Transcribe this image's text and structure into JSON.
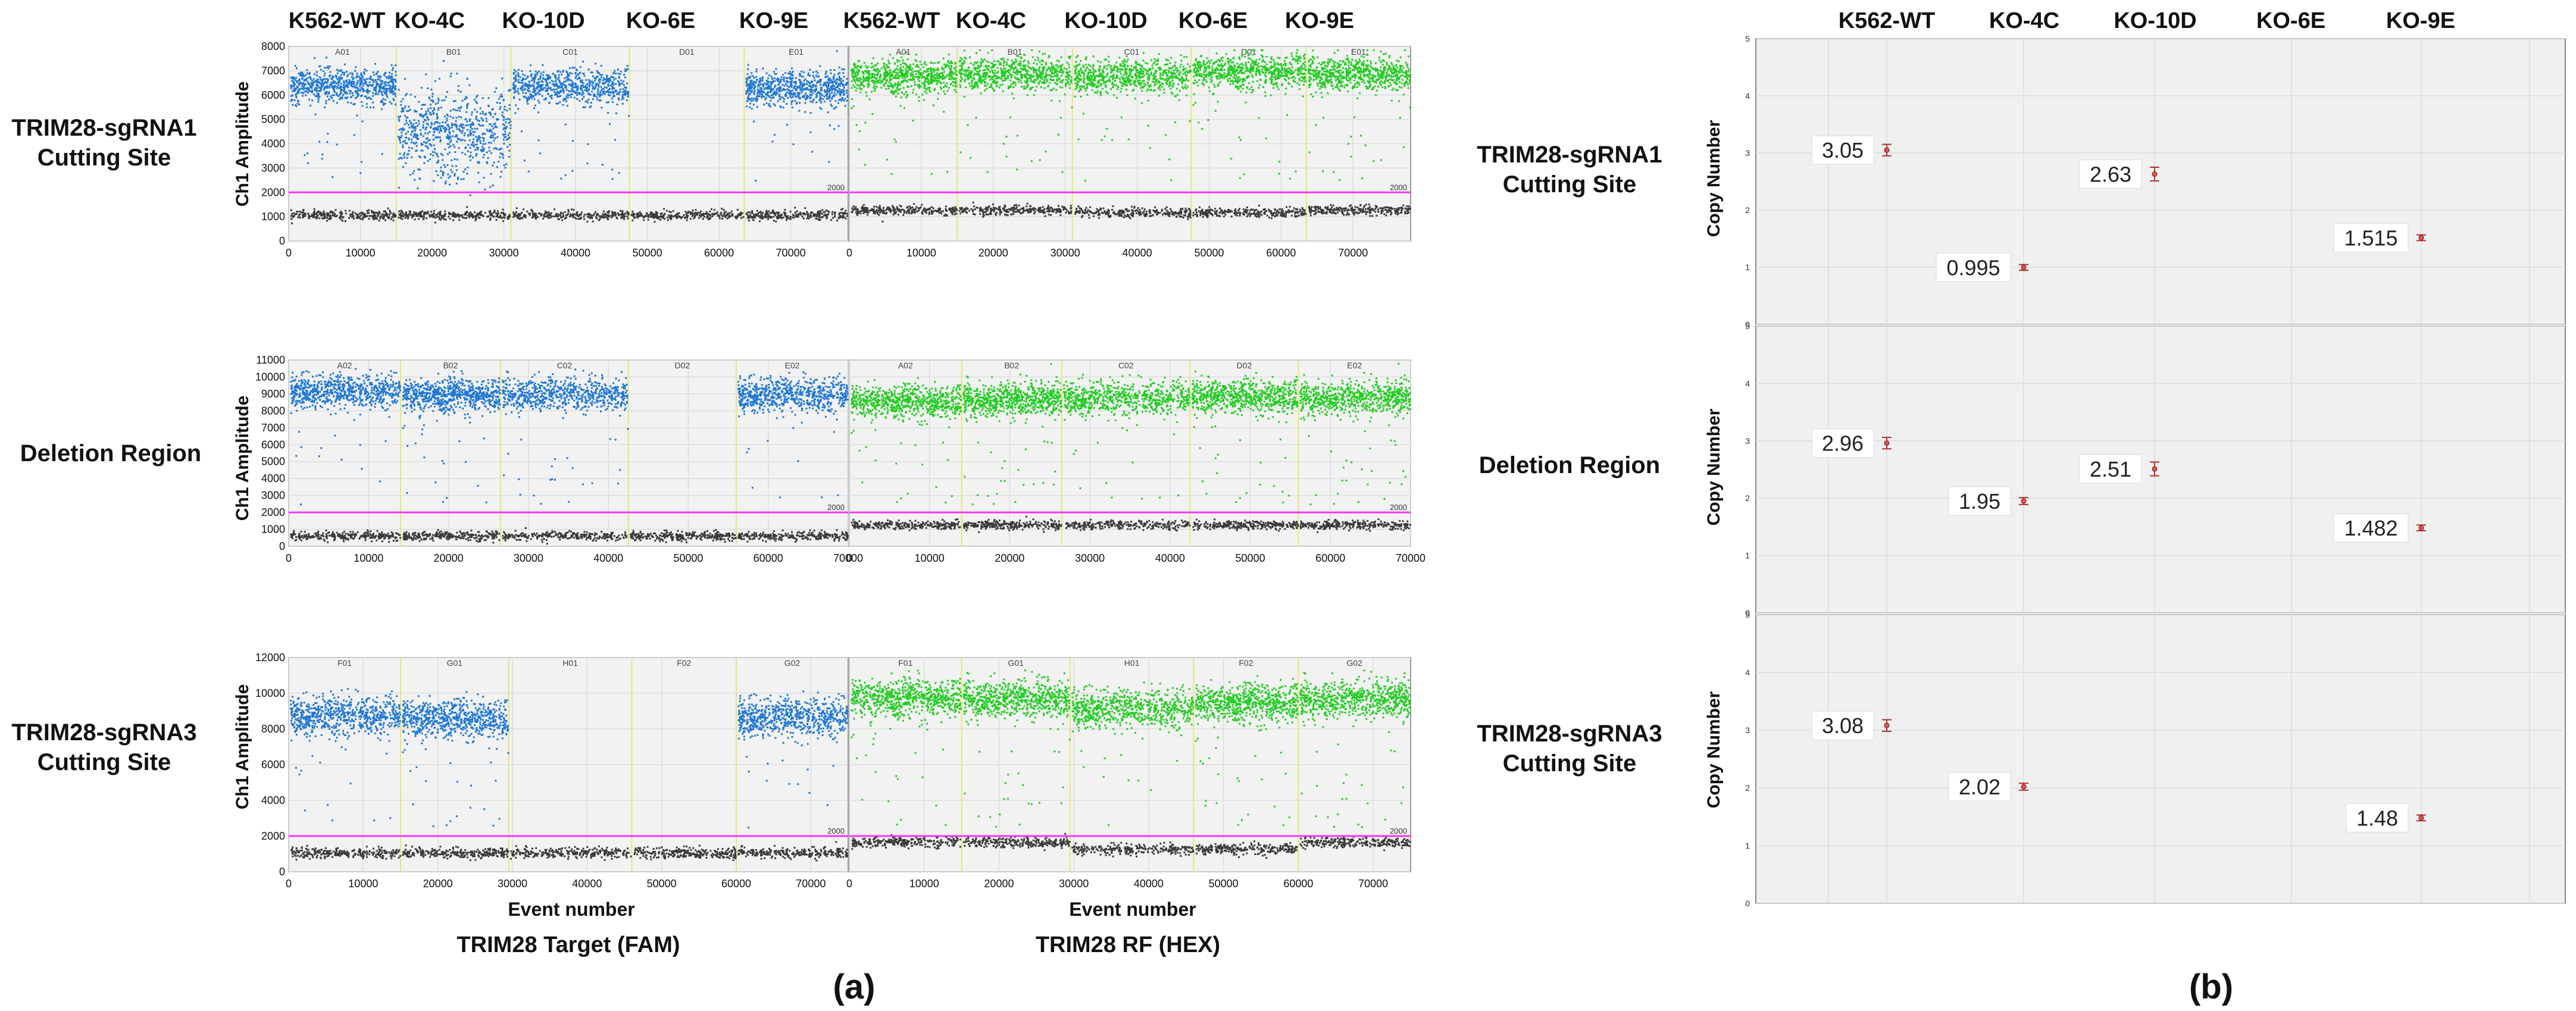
{
  "chart_data": {
    "samples": [
      "K562-WT",
      "KO-4C",
      "KO-10D",
      "KO-6E",
      "KO-9E"
    ],
    "rows": [
      "TRIM28-sgRNA1\nCutting Site",
      "Deletion Region",
      "TRIM28-sgRNA3\nCutting Site"
    ],
    "panel_a": {
      "type": "scatter",
      "label": "(a)",
      "xlabel": "Event number",
      "ylabel": "Ch1 Amplitude",
      "threshold": 2000,
      "threshold_label": "2000",
      "columns": [
        "TRIM28 Target (FAM)",
        "TRIM28 RF (HEX)"
      ],
      "colors": {
        "fam": "#1f77d4",
        "hex": "#22cc22",
        "negative": "#3a3a3a",
        "threshold": "#ff33ff",
        "divider": "#e6e67a"
      },
      "plots": [
        {
          "ylim": [
            0,
            8000
          ],
          "yticks": [
            0,
            1000,
            2000,
            3000,
            4000,
            5000,
            6000,
            7000,
            8000
          ],
          "xlim": [
            0,
            78000
          ],
          "xticks": [
            0,
            10000,
            20000,
            30000,
            40000,
            50000,
            60000,
            70000
          ],
          "wells": [
            "A01",
            "B01",
            "C01",
            "D01",
            "E01"
          ],
          "boundaries": [
            0,
            15000,
            31000,
            47500,
            63500,
            78000
          ],
          "fam_pos": [
            6400,
            4500,
            6400,
            null,
            6300
          ],
          "hex_pos": [
            6800,
            6900,
            6800,
            7000,
            6900
          ],
          "neg": [
            1100,
            1100,
            1100,
            1100,
            1100
          ],
          "hex_neg": [
            1300,
            1300,
            1200,
            1200,
            1300
          ]
        },
        {
          "ylim": [
            0,
            11000
          ],
          "yticks": [
            0,
            1000,
            2000,
            3000,
            4000,
            5000,
            6000,
            7000,
            8000,
            9000,
            10000,
            11000
          ],
          "xlim": [
            0,
            70000
          ],
          "xticks": [
            0,
            10000,
            20000,
            30000,
            40000,
            50000,
            60000,
            70000
          ],
          "wells": [
            "A02",
            "B02",
            "C02",
            "D02",
            "E02"
          ],
          "boundaries": [
            0,
            14000,
            26500,
            42500,
            56000,
            70000
          ],
          "fam_pos": [
            9200,
            9000,
            9000,
            null,
            9000
          ],
          "hex_pos": [
            8600,
            8700,
            8800,
            8900,
            8800
          ],
          "neg": [
            650,
            650,
            650,
            650,
            650
          ],
          "hex_neg": [
            1300,
            1300,
            1300,
            1300,
            1300
          ]
        },
        {
          "ylim": [
            0,
            12000
          ],
          "yticks": [
            0,
            2000,
            4000,
            6000,
            8000,
            10000,
            12000
          ],
          "xlim": [
            0,
            75000
          ],
          "xticks": [
            0,
            10000,
            20000,
            30000,
            40000,
            50000,
            60000,
            70000
          ],
          "wells": [
            "F01",
            "G01",
            "H01",
            "F02",
            "G02"
          ],
          "boundaries": [
            0,
            15000,
            29500,
            46000,
            60000,
            75000
          ],
          "fam_pos": [
            8800,
            8600,
            null,
            null,
            8700
          ],
          "hex_pos": [
            9800,
            9700,
            9200,
            9500,
            9700
          ],
          "neg": [
            1100,
            1100,
            1100,
            1100,
            1100
          ],
          "hex_neg": [
            1700,
            1700,
            1300,
            1300,
            1700
          ]
        }
      ]
    },
    "panel_b": {
      "type": "scatter",
      "label": "(b)",
      "ylabel": "Copy Number",
      "ylim": [
        0,
        5
      ],
      "yticks": [
        0,
        1,
        2,
        3,
        4,
        5
      ],
      "series": [
        {
          "row": "TRIM28-sgRNA1 Cutting Site",
          "values": [
            3.05,
            0.995,
            2.63,
            null,
            1.515
          ],
          "labels": [
            "3.05",
            "0.995",
            "2.63",
            "",
            "1.515"
          ]
        },
        {
          "row": "Deletion Region",
          "values": [
            2.96,
            1.95,
            2.51,
            null,
            1.482
          ],
          "labels": [
            "2.96",
            "1.95",
            "2.51",
            "",
            "1.482"
          ]
        },
        {
          "row": "TRIM28-sgRNA3 Cutting Site",
          "values": [
            3.08,
            2.02,
            null,
            null,
            1.48
          ],
          "labels": [
            "3.08",
            "2.02",
            "",
            "",
            "1.48"
          ]
        }
      ],
      "errors": [
        [
          0.1,
          0.05,
          0.12,
          null,
          0.05
        ],
        [
          0.1,
          0.06,
          0.12,
          null,
          0.05
        ],
        [
          0.1,
          0.06,
          null,
          null,
          0.05
        ]
      ]
    }
  }
}
